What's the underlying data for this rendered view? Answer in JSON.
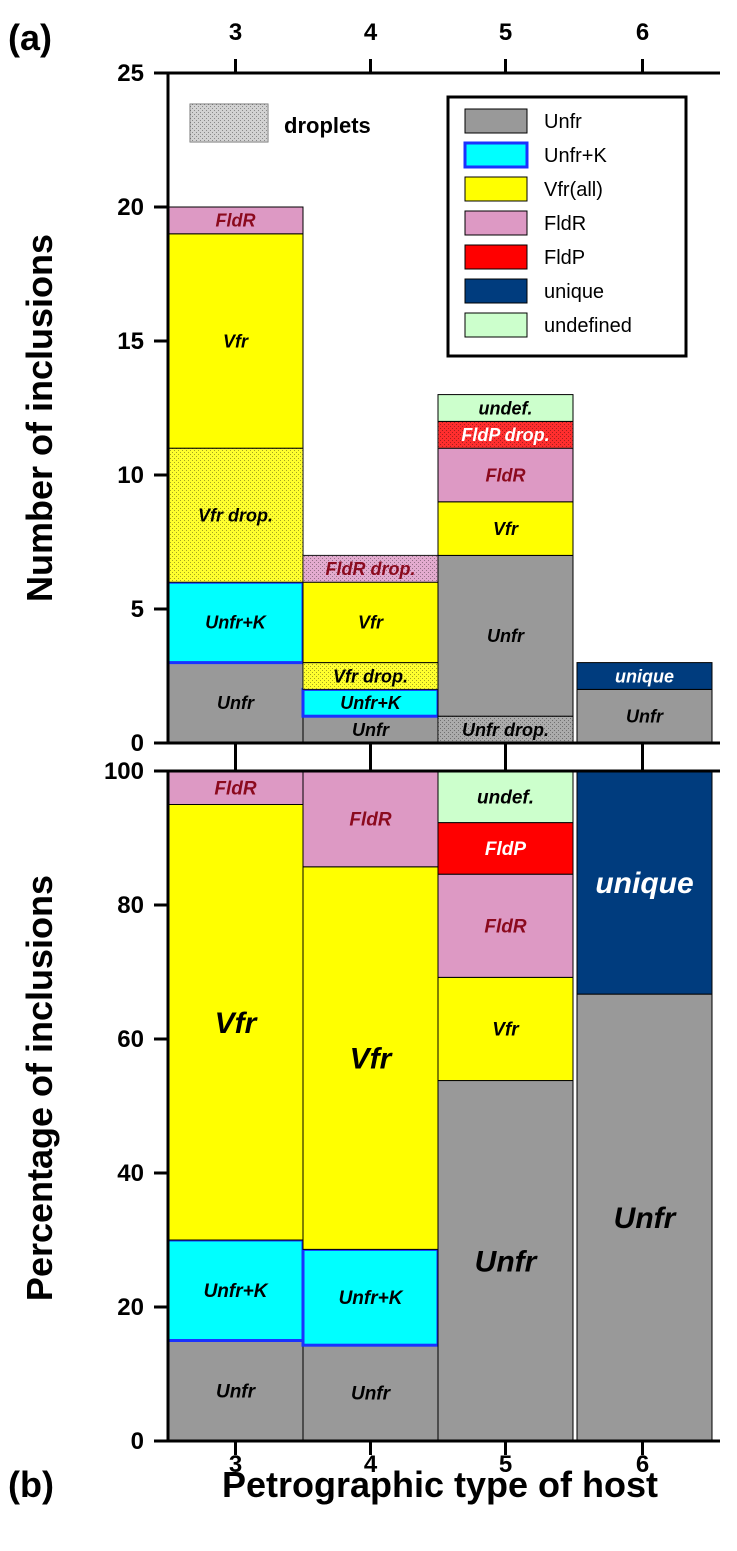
{
  "figure": {
    "panel_a_label": "(a)",
    "panel_b_label": "(b)",
    "xlabel": "Petrographic type of host",
    "ylabel_a": "Number of inclusions",
    "ylabel_b": "Percentage of inclusions",
    "droplets_label": "droplets"
  },
  "colors": {
    "Unfr": "#999999",
    "Unfr+K": "#00ffff",
    "Vfr": "#ffff00",
    "FldR": "#dd99c4",
    "FldP": "#ff0000",
    "unique": "#003c7e",
    "undefined": "#ccffcc",
    "Unfr+K_border": "#1a32ff",
    "droplets": "#c8c8c8"
  },
  "legend": [
    {
      "key": "Unfr",
      "label": "Unfr"
    },
    {
      "key": "Unfr+K",
      "label": "Unfr+K"
    },
    {
      "key": "Vfr",
      "label": "Vfr(all)"
    },
    {
      "key": "FldR",
      "label": "FldR"
    },
    {
      "key": "FldP",
      "label": "FldP"
    },
    {
      "key": "unique",
      "label": "unique"
    },
    {
      "key": "undefined",
      "label": "undefined"
    }
  ],
  "chart_data": [
    {
      "type": "bar",
      "stacked": true,
      "panel": "a",
      "categories": [
        "3",
        "4",
        "5",
        "6"
      ],
      "ylabel": "Number of inclusions",
      "ylim": [
        0,
        25
      ],
      "yticks": [
        0,
        5,
        10,
        15,
        20,
        25
      ],
      "x_tick_position": "top",
      "legend_placement": "top-right",
      "bars": [
        {
          "category": "3",
          "segments": [
            {
              "key": "Unfr",
              "value": 3,
              "label": "Unfr",
              "droplets": false
            },
            {
              "key": "Unfr+K",
              "value": 3,
              "label": "Unfr+K",
              "droplets": false
            },
            {
              "key": "Vfr",
              "value": 5,
              "label": "Vfr drop.",
              "droplets": true
            },
            {
              "key": "Vfr",
              "value": 8,
              "label": "Vfr",
              "droplets": false
            },
            {
              "key": "FldR",
              "value": 1,
              "label": "FldR",
              "droplets": false
            }
          ]
        },
        {
          "category": "4",
          "segments": [
            {
              "key": "Unfr",
              "value": 1,
              "label": "Unfr",
              "droplets": false
            },
            {
              "key": "Unfr+K",
              "value": 1,
              "label": "Unfr+K",
              "droplets": false
            },
            {
              "key": "Vfr",
              "value": 1,
              "label": "Vfr drop.",
              "droplets": true
            },
            {
              "key": "Vfr",
              "value": 3,
              "label": "Vfr",
              "droplets": false
            },
            {
              "key": "FldR",
              "value": 1,
              "label": "FldR drop.",
              "droplets": true
            }
          ]
        },
        {
          "category": "5",
          "segments": [
            {
              "key": "Unfr",
              "value": 1,
              "label": "Unfr drop.",
              "droplets": true
            },
            {
              "key": "Unfr",
              "value": 6,
              "label": "Unfr",
              "droplets": false
            },
            {
              "key": "Vfr",
              "value": 2,
              "label": "Vfr",
              "droplets": false
            },
            {
              "key": "FldR",
              "value": 2,
              "label": "FldR",
              "droplets": false
            },
            {
              "key": "FldP",
              "value": 1,
              "label": "FldP drop.",
              "droplets": true
            },
            {
              "key": "undefined",
              "value": 1,
              "label": "undef.",
              "droplets": false
            }
          ]
        },
        {
          "category": "6",
          "segments": [
            {
              "key": "Unfr",
              "value": 2,
              "label": "Unfr",
              "droplets": false
            },
            {
              "key": "unique",
              "value": 1,
              "label": "unique",
              "droplets": false
            }
          ]
        }
      ]
    },
    {
      "type": "bar",
      "stacked": true,
      "panel": "b",
      "categories": [
        "3",
        "4",
        "5",
        "6"
      ],
      "xlabel": "Petrographic type of host",
      "ylabel": "Percentage of inclusions",
      "ylim": [
        0,
        100
      ],
      "yticks": [
        0,
        20,
        40,
        60,
        80,
        100
      ],
      "bars": [
        {
          "category": "3",
          "segments": [
            {
              "key": "Unfr",
              "value": 15,
              "label": "Unfr"
            },
            {
              "key": "Unfr+K",
              "value": 15,
              "label": "Unfr+K"
            },
            {
              "key": "Vfr",
              "value": 65,
              "label": "Vfr"
            },
            {
              "key": "FldR",
              "value": 5,
              "label": "FldR"
            }
          ]
        },
        {
          "category": "4",
          "segments": [
            {
              "key": "Unfr",
              "value": 14.3,
              "label": "Unfr"
            },
            {
              "key": "Unfr+K",
              "value": 14.3,
              "label": "Unfr+K"
            },
            {
              "key": "Vfr",
              "value": 57.1,
              "label": "Vfr"
            },
            {
              "key": "FldR",
              "value": 14.3,
              "label": "FldR"
            }
          ]
        },
        {
          "category": "5",
          "segments": [
            {
              "key": "Unfr",
              "value": 53.8,
              "label": "Unfr"
            },
            {
              "key": "Vfr",
              "value": 15.4,
              "label": "Vfr"
            },
            {
              "key": "FldR",
              "value": 15.4,
              "label": "FldR"
            },
            {
              "key": "FldP",
              "value": 7.7,
              "label": "FldP"
            },
            {
              "key": "undefined",
              "value": 7.7,
              "label": "undef."
            }
          ]
        },
        {
          "category": "6",
          "segments": [
            {
              "key": "Unfr",
              "value": 66.7,
              "label": "Unfr"
            },
            {
              "key": "unique",
              "value": 33.3,
              "label": "unique"
            }
          ]
        }
      ]
    }
  ]
}
